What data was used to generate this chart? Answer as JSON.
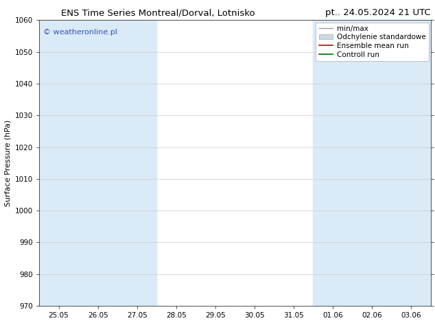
{
  "title_left": "ENS Time Series Montreal/Dorval, Lotnisko",
  "title_right": "pt.. 24.05.2024 21 UTC",
  "ylabel": "Surface Pressure (hPa)",
  "ylim": [
    970,
    1060
  ],
  "yticks": [
    970,
    980,
    990,
    1000,
    1010,
    1020,
    1030,
    1040,
    1050,
    1060
  ],
  "x_labels": [
    "25.05",
    "26.05",
    "27.05",
    "28.05",
    "29.05",
    "30.05",
    "31.05",
    "01.06",
    "02.06",
    "03.06"
  ],
  "x_values": [
    0,
    1,
    2,
    3,
    4,
    5,
    6,
    7,
    8,
    9
  ],
  "shaded_columns": [
    0,
    1,
    2,
    7,
    8,
    9
  ],
  "shade_color": "#daeaf7",
  "watermark": "© weatheronline.pl",
  "watermark_color": "#3355bb",
  "bg_color": "#ffffff",
  "plot_bg_color": "#ffffff",
  "grid_color": "#cccccc",
  "title_fontsize": 9.5,
  "tick_fontsize": 7.5,
  "ylabel_fontsize": 8,
  "legend_fontsize": 7.5
}
